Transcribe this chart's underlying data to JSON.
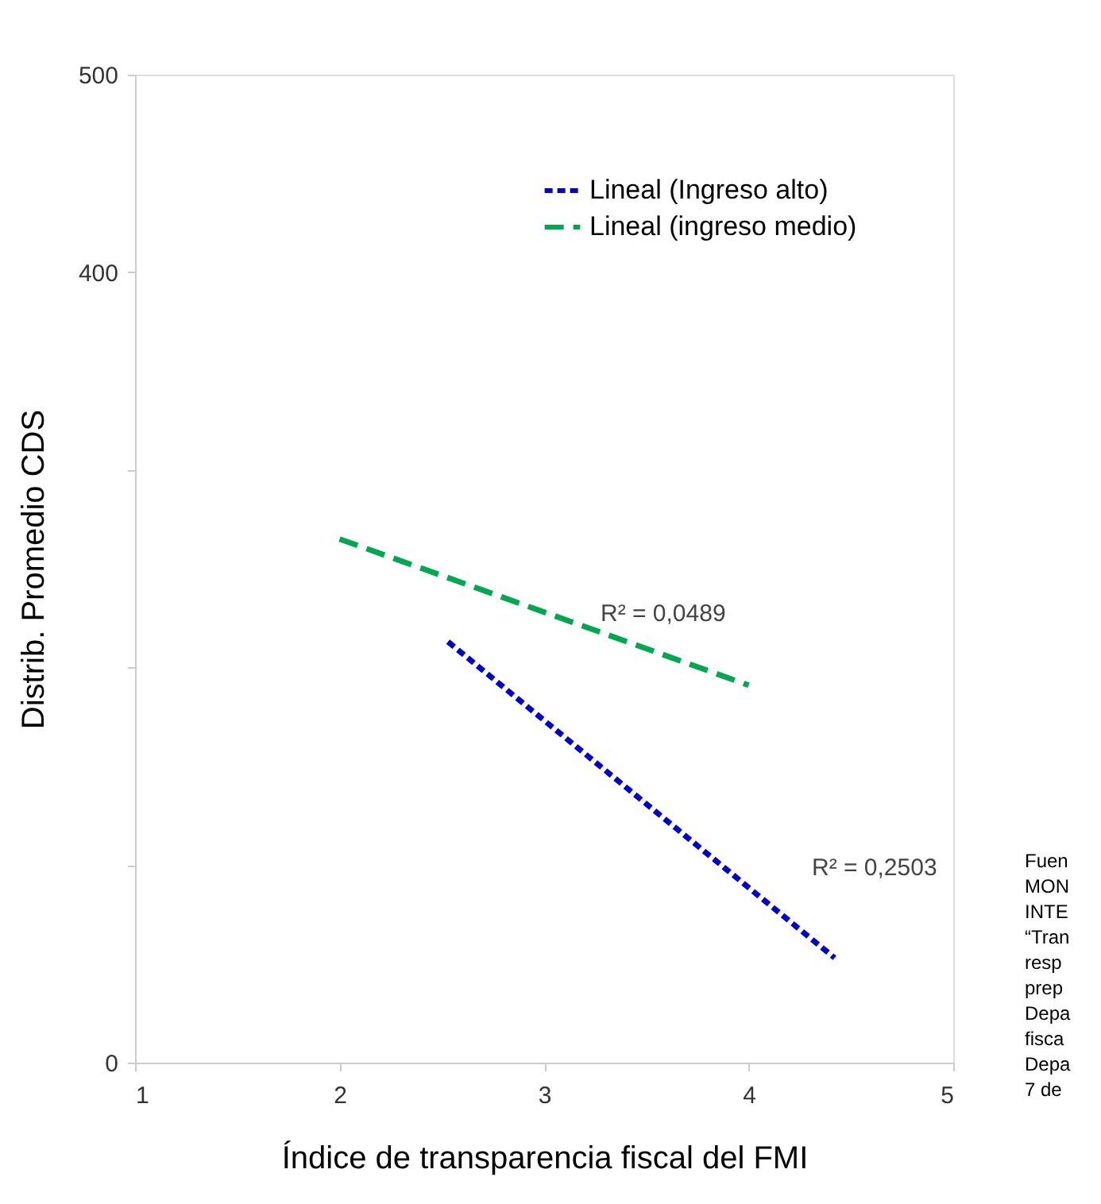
{
  "chart_data": {
    "type": "line",
    "xlabel": "Índice de transparencia fiscal del FMI",
    "ylabel": "Distrib. Promedio CDS",
    "series": [
      {
        "name": "Lineal (Ingreso alto)",
        "color": "#0000cc",
        "line_style": "dotted",
        "x": [
          2.53,
          4.42
        ],
        "values": [
          213,
          53
        ]
      },
      {
        "name": "Lineal (ingreso medio)",
        "color": "#00a650",
        "line_style": "dashed",
        "x": [
          2,
          4
        ],
        "values": [
          265,
          191
        ]
      }
    ],
    "annotations": [
      "R² = 0,0489",
      "R² = 0,2503",
      "Fuen",
      "MON",
      "INTE",
      "“Tran",
      "resp",
      "prep",
      "Depa",
      "fisca",
      "Depa",
      "7 de"
    ],
    "xlim": [
      1,
      5
    ],
    "xticks": [
      1,
      2,
      3,
      4,
      5
    ],
    "ylim": [
      0,
      500
    ],
    "yticks": [
      0,
      {
        "value": 100,
        "label": null
      },
      {
        "value": 200,
        "label": null
      },
      {
        "value": 300,
        "label": null
      },
      400,
      500
    ],
    "grid": false,
    "legend": "top right",
    "marker": "none"
  }
}
